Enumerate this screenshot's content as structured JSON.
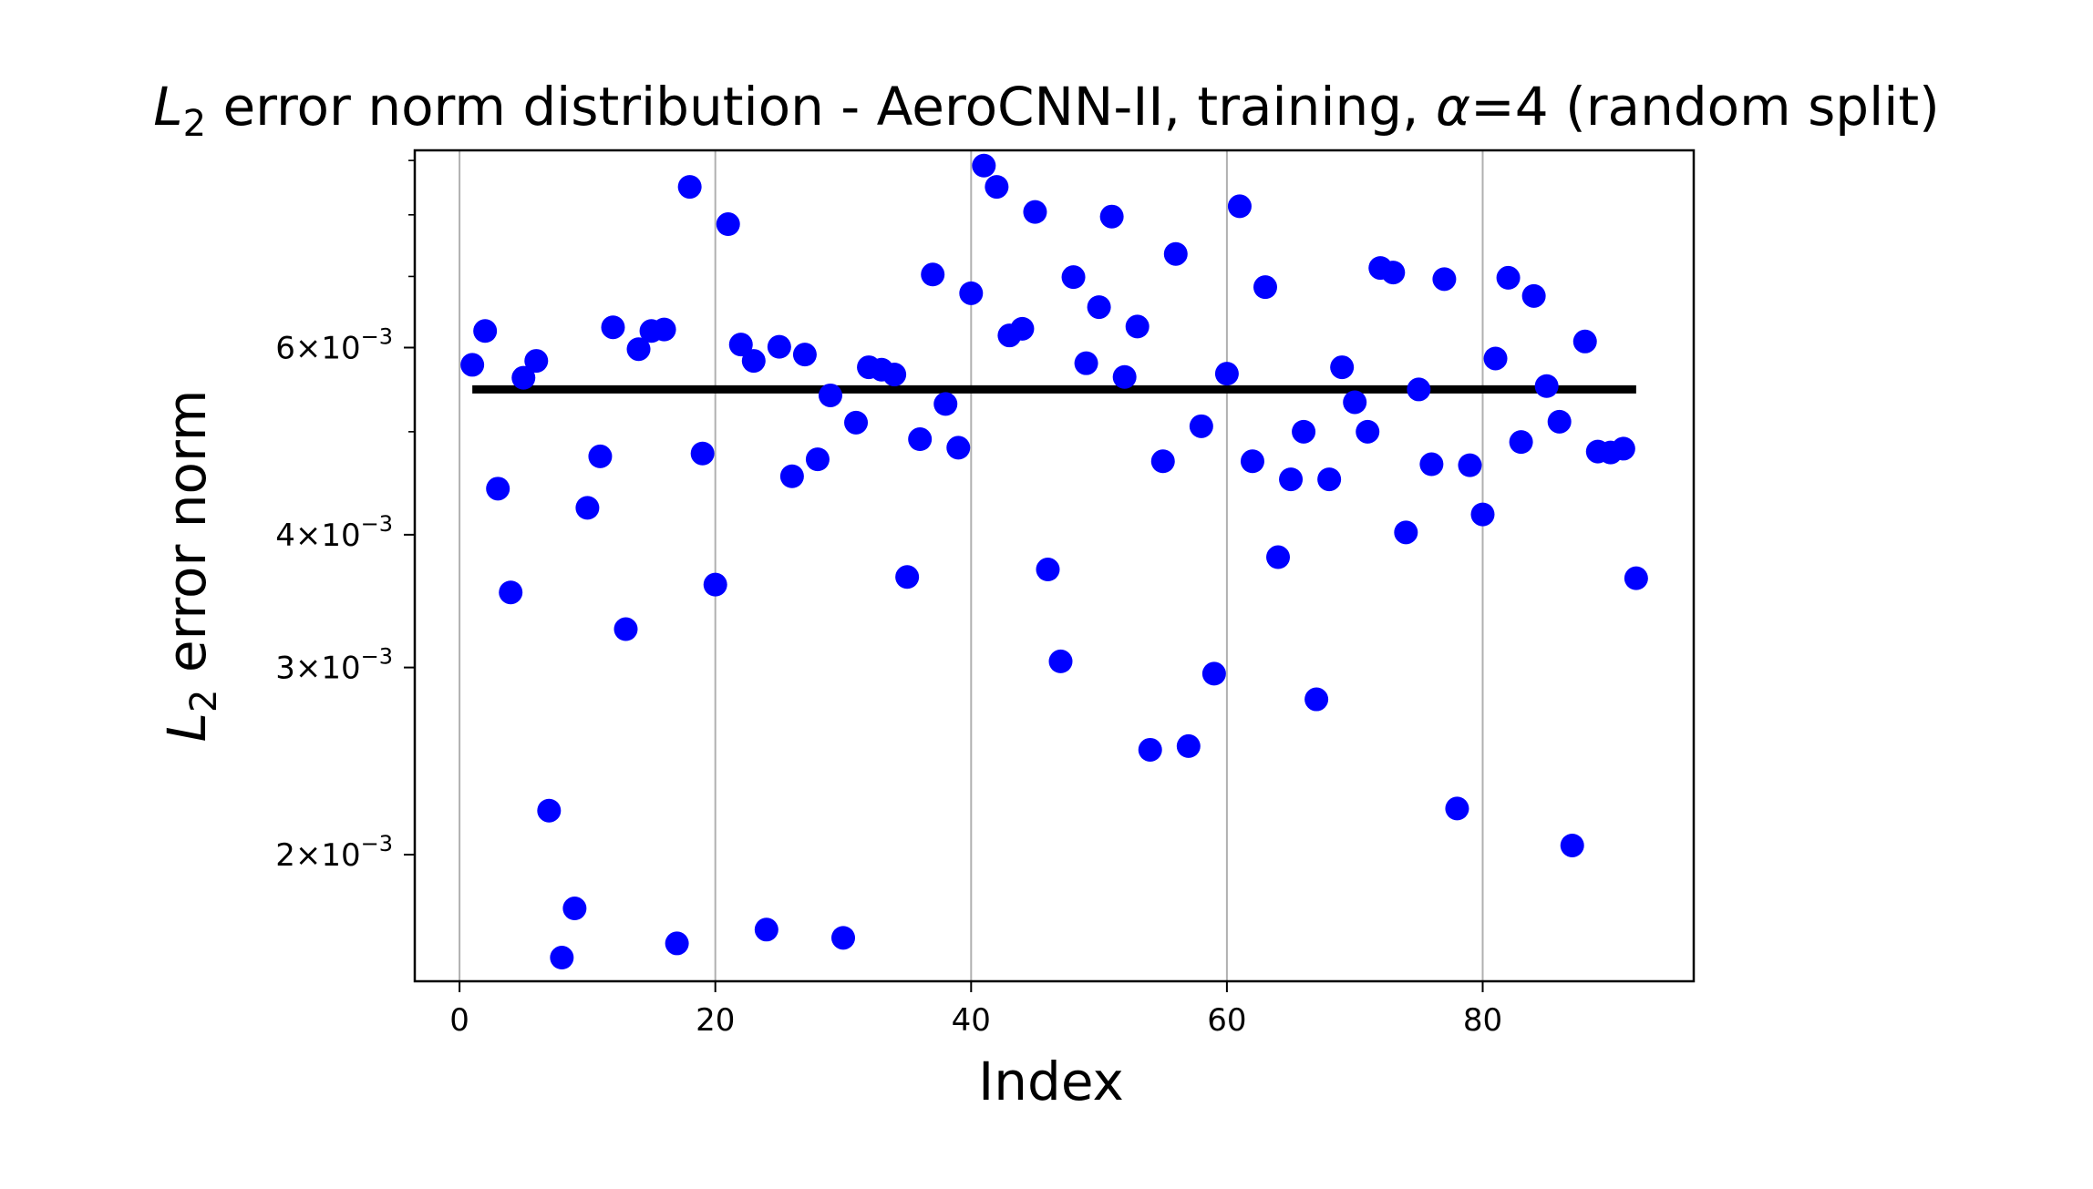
{
  "chart_data": {
    "type": "scatter",
    "title": {
      "prefix_italic": "L",
      "prefix_sub": "2",
      "middle": " error norm distribution - AeroCNN-II, training, ",
      "alpha_symbol": "α",
      "suffix": "=4 (random split)"
    },
    "xlabel": "Index",
    "ylabel": {
      "italic": "L",
      "sub": "2",
      "rest": " error norm"
    },
    "x_scale": "linear",
    "y_scale": "log",
    "xlim": [
      -3.5,
      96.5
    ],
    "ylim": [
      0.00152,
      0.0092
    ],
    "x_ticks": [
      {
        "value": 0,
        "label": "0"
      },
      {
        "value": 20,
        "label": "20"
      },
      {
        "value": 40,
        "label": "40"
      },
      {
        "value": 60,
        "label": "60"
      },
      {
        "value": 80,
        "label": "80"
      }
    ],
    "y_ticks": [
      {
        "value": 0.002,
        "base": "2",
        "exp": "−3"
      },
      {
        "value": 0.003,
        "base": "3",
        "exp": "−3"
      },
      {
        "value": 0.004,
        "base": "4",
        "exp": "−3"
      },
      {
        "value": 0.006,
        "base": "6",
        "exp": "−3"
      }
    ],
    "y_times_sign": "×",
    "y_ten": "10",
    "y_minor_ticks": [
      0.005,
      0.007,
      0.008,
      0.009
    ],
    "grid": "x-major vertical lines",
    "point_color": "#0000ff",
    "mean_line_color": "#000000",
    "mean_line": {
      "x_start": 1,
      "x_end": 92,
      "y": 0.00548
    },
    "series": [
      {
        "x": [
          1,
          2,
          3,
          4,
          5,
          6,
          7,
          8,
          9,
          10,
          11,
          12,
          13,
          14,
          15,
          16,
          17,
          18,
          19,
          20,
          21,
          22,
          23,
          24,
          25,
          26,
          27,
          28,
          29,
          30,
          31,
          32,
          33,
          34,
          35,
          36,
          37,
          38,
          39,
          40,
          41,
          42,
          43,
          44,
          45,
          46,
          47,
          48,
          49,
          50,
          51,
          52,
          53,
          54,
          55,
          56,
          57,
          58,
          59,
          60,
          61,
          62,
          63,
          64,
          65,
          66,
          67,
          68,
          69,
          70,
          71,
          72,
          73,
          74,
          75,
          76,
          77,
          78,
          79,
          80,
          81,
          82,
          83,
          84,
          85,
          86,
          87,
          88,
          89,
          90,
          91,
          92
        ],
        "y": [
          0.00578,
          0.00622,
          0.00442,
          0.00353,
          0.00562,
          0.00583,
          0.0022,
          0.0016,
          0.00178,
          0.00424,
          0.00474,
          0.00627,
          0.00326,
          0.00598,
          0.00622,
          0.00624,
          0.00165,
          0.0085,
          0.00477,
          0.00359,
          0.00784,
          0.00604,
          0.00583,
          0.0017,
          0.00601,
          0.00454,
          0.00591,
          0.00471,
          0.00541,
          0.00167,
          0.0051,
          0.00575,
          0.00572,
          0.00566,
          0.00365,
          0.00492,
          0.00703,
          0.00531,
          0.00483,
          0.00675,
          0.0089,
          0.0085,
          0.00616,
          0.00625,
          0.00805,
          0.00371,
          0.00304,
          0.00699,
          0.0058,
          0.00655,
          0.00797,
          0.00563,
          0.00628,
          0.00251,
          0.00469,
          0.00735,
          0.00253,
          0.00506,
          0.00296,
          0.00567,
          0.00815,
          0.00469,
          0.00684,
          0.00381,
          0.00451,
          0.005,
          0.0028,
          0.00451,
          0.00575,
          0.00533,
          0.005,
          0.00713,
          0.00706,
          0.00402,
          0.00548,
          0.00466,
          0.00696,
          0.00221,
          0.00465,
          0.00418,
          0.00586,
          0.00698,
          0.00489,
          0.00671,
          0.00552,
          0.00511,
          0.00204,
          0.00608,
          0.00479,
          0.00478,
          0.00482,
          0.00364
        ]
      }
    ]
  }
}
